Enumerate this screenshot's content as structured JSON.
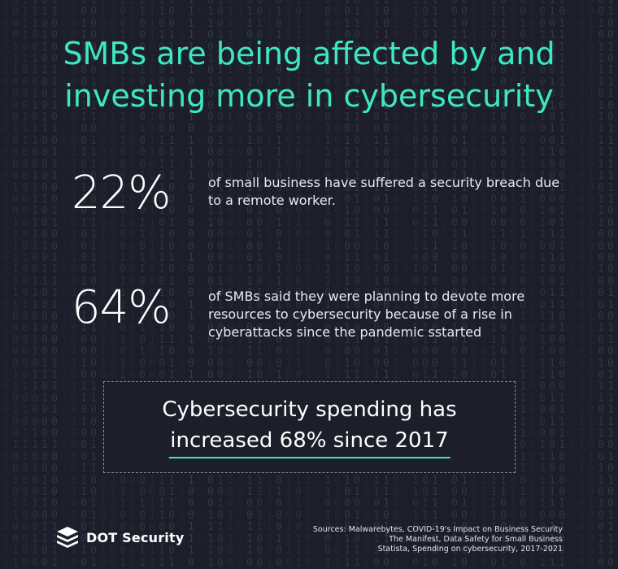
{
  "title": {
    "line1": "SMBs are being affected by and",
    "line2": "investing more in cybersecurity"
  },
  "stats": [
    {
      "percent": "22%",
      "text": "of small business have suffered a security breach due to a remote worker."
    },
    {
      "percent": "64%",
      "text": "of SMBs said they were planning to devote more resources to cybersecurity because of a rise in cyberattacks since the pandemic sstarted"
    }
  ],
  "callout": {
    "line1": "Cybersecurity spending has",
    "line2": "increased 68% since 2017"
  },
  "logo": {
    "text": "DOT Security",
    "icon": "stacked-layers-icon"
  },
  "sources": [
    "Sources: Malwarebytes, COVID-19's Impact on Business Security",
    "The Manifest, Data Safety for Small Business",
    "Statista, Spending on cybersecurity, 2017-2021"
  ],
  "colors": {
    "background": "#1c1f2a",
    "accent": "#3de8c1",
    "text": "#ffffff"
  }
}
